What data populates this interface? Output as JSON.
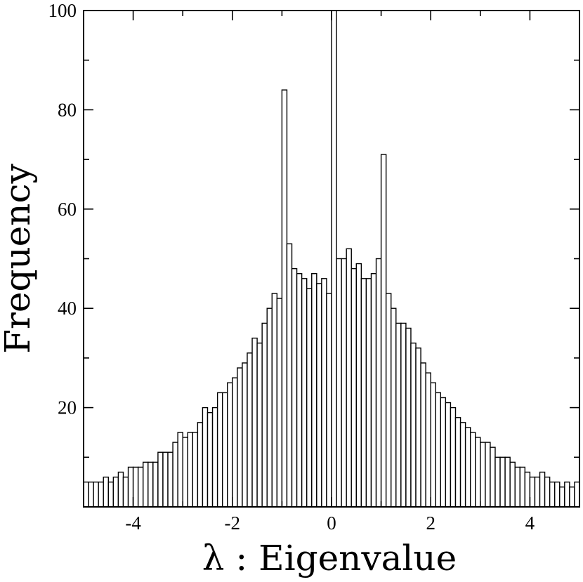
{
  "chart_data": {
    "type": "bar",
    "xlabel": "λ : Eigenvalue",
    "ylabel": "Frequency",
    "xlim": [
      -5,
      5
    ],
    "ylim": [
      0,
      100
    ],
    "x_ticks": [
      -4,
      -2,
      0,
      2,
      4
    ],
    "x_tick_labels": [
      "-4",
      "-2",
      "0",
      "2",
      "4"
    ],
    "y_ticks": [
      20,
      40,
      60,
      80,
      100
    ],
    "y_tick_labels": [
      "20",
      "40",
      "60",
      "80",
      "100"
    ],
    "bin_width": 0.1,
    "bin_start": -5.0,
    "values": [
      5,
      5,
      5,
      5,
      6,
      5,
      6,
      7,
      6,
      8,
      8,
      8,
      9,
      9,
      9,
      11,
      11,
      11,
      13,
      15,
      14,
      15,
      15,
      17,
      20,
      19,
      20,
      23,
      23,
      25,
      26,
      28,
      29,
      31,
      34,
      33,
      37,
      40,
      43,
      42,
      84,
      53,
      48,
      47,
      46,
      44,
      47,
      45,
      46,
      43,
      100,
      50,
      50,
      52,
      48,
      49,
      46,
      46,
      47,
      50,
      71,
      43,
      40,
      37,
      37,
      36,
      33,
      32,
      29,
      27,
      25,
      23,
      22,
      21,
      20,
      18,
      17,
      16,
      15,
      14,
      13,
      13,
      12,
      10,
      10,
      10,
      9,
      8,
      8,
      7,
      6,
      6,
      7,
      6,
      5,
      5,
      4,
      5,
      4,
      5
    ]
  }
}
